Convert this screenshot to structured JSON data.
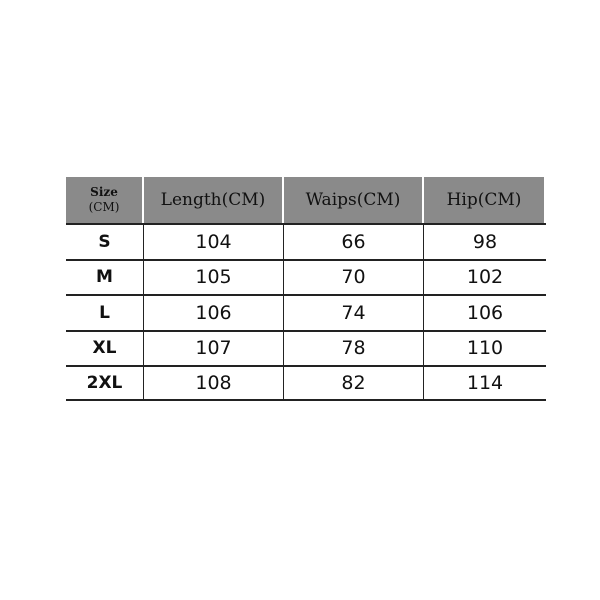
{
  "table": {
    "header": {
      "size_line1": "Size",
      "size_line2": "(CM)",
      "columns": [
        "Length(CM)",
        "Waips(CM)",
        "Hip(CM)"
      ]
    },
    "header_color": "#8a8a8a",
    "rows": [
      {
        "size": "S",
        "length": "104",
        "waist": "66",
        "hip": "98"
      },
      {
        "size": "M",
        "length": "105",
        "waist": "70",
        "hip": "102"
      },
      {
        "size": "L",
        "length": "106",
        "waist": "74",
        "hip": "106"
      },
      {
        "size": "XL",
        "length": "107",
        "waist": "78",
        "hip": "110"
      },
      {
        "size": "2XL",
        "length": "108",
        "waist": "82",
        "hip": "114"
      }
    ]
  }
}
